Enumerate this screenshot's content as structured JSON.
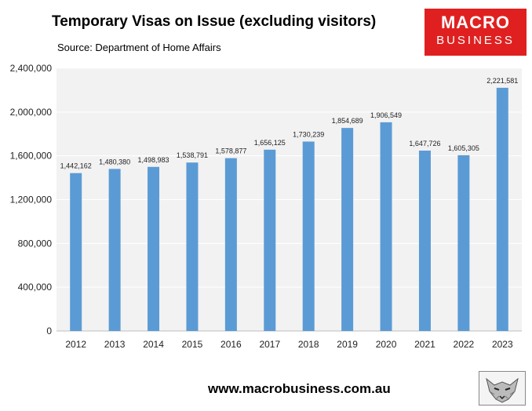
{
  "header": {
    "title": "Temporary Visas on Issue (excluding visitors)",
    "subtitle": "Source: Department of Home Affairs"
  },
  "logo": {
    "line1": "MACRO",
    "line2": "BUSINESS",
    "bg_color": "#e02020"
  },
  "footer": {
    "url": "www.macrobusiness.com.au"
  },
  "chart_data": {
    "type": "bar",
    "categories": [
      "2012",
      "2013",
      "2014",
      "2015",
      "2016",
      "2017",
      "2018",
      "2019",
      "2020",
      "2021",
      "2022",
      "2023"
    ],
    "values": [
      1442162,
      1480380,
      1498983,
      1538791,
      1578877,
      1656125,
      1730239,
      1854689,
      1906549,
      1647726,
      1605305,
      2221581
    ],
    "data_labels": [
      "1,442,162",
      "1,480,380",
      "1,498,983",
      "1,538,791",
      "1,578,877",
      "1,656,125",
      "1,730,239",
      "1,854,689",
      "1,906,549",
      "1,647,726",
      "1,605,305",
      "2,221,581"
    ],
    "title": "Temporary Visas on Issue (excluding visitors)",
    "subtitle": "Source: Department of Home Affairs",
    "ylim": [
      0,
      2400000
    ],
    "y_ticks": [
      0,
      400000,
      800000,
      1200000,
      1600000,
      2000000,
      2400000
    ],
    "y_tick_labels": [
      "0",
      "400,000",
      "800,000",
      "1,200,000",
      "1,600,000",
      "2,000,000",
      "2,400,000"
    ],
    "grid": "horizontal",
    "bar_color": "#5b9bd5",
    "plot_bg": "#f2f2f2"
  }
}
